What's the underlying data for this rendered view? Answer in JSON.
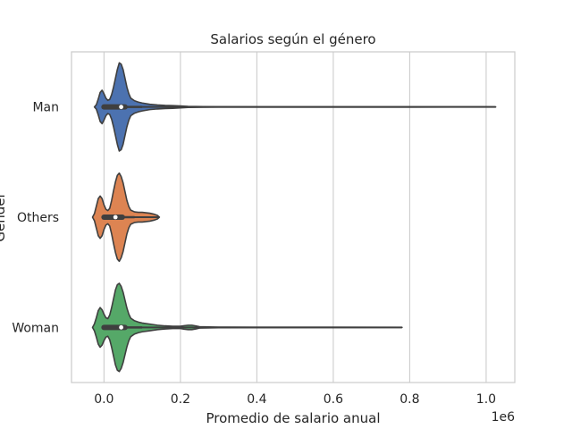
{
  "chart_data": {
    "type": "violin",
    "orientation": "horizontal",
    "title": "Salarios según el género",
    "xlabel": "Promedio de salario anual",
    "ylabel": "Gender",
    "x_offset_label": "1e6",
    "x_scale": 1000000,
    "xlim": [
      -0.085,
      1.075
    ],
    "x_ticks": [
      0.0,
      0.2,
      0.4,
      0.6,
      0.8,
      1.0
    ],
    "x_tick_labels": [
      "0.0",
      "0.2",
      "0.4",
      "0.6",
      "0.8",
      "1.0"
    ],
    "grid": "vertical",
    "categories": [
      "Man",
      "Others",
      "Woman"
    ],
    "series": [
      {
        "name": "Man",
        "color": "#4c72b0",
        "density": [
          [
            -0.025,
            0.0
          ],
          [
            -0.02,
            0.05
          ],
          [
            -0.015,
            0.18
          ],
          [
            -0.01,
            0.33
          ],
          [
            -0.005,
            0.38
          ],
          [
            0.0,
            0.3
          ],
          [
            0.005,
            0.2
          ],
          [
            0.01,
            0.15
          ],
          [
            0.015,
            0.17
          ],
          [
            0.02,
            0.28
          ],
          [
            0.025,
            0.45
          ],
          [
            0.03,
            0.65
          ],
          [
            0.035,
            0.85
          ],
          [
            0.04,
            1.0
          ],
          [
            0.045,
            0.97
          ],
          [
            0.05,
            0.85
          ],
          [
            0.055,
            0.65
          ],
          [
            0.06,
            0.45
          ],
          [
            0.065,
            0.3
          ],
          [
            0.07,
            0.2
          ],
          [
            0.08,
            0.14
          ],
          [
            0.09,
            0.11
          ],
          [
            0.1,
            0.09
          ],
          [
            0.12,
            0.06
          ],
          [
            0.14,
            0.045
          ],
          [
            0.16,
            0.035
          ],
          [
            0.18,
            0.03
          ],
          [
            0.2,
            0.022
          ],
          [
            0.22,
            0.012
          ],
          [
            0.26,
            0.007
          ],
          [
            0.3,
            0.004
          ],
          [
            0.4,
            0.0025
          ],
          [
            0.6,
            0.002
          ],
          [
            0.8,
            0.002
          ],
          [
            1.0,
            0.0015
          ],
          [
            1.025,
            0.0
          ]
        ],
        "box": {
          "q1": 0.0,
          "median": 0.045,
          "q3": 0.055,
          "whisker_low": 0.0,
          "whisker_high": 0.1
        },
        "max": 1.025
      },
      {
        "name": "Others",
        "color": "#dd8452",
        "density": [
          [
            -0.03,
            0.0
          ],
          [
            -0.025,
            0.08
          ],
          [
            -0.02,
            0.25
          ],
          [
            -0.015,
            0.42
          ],
          [
            -0.01,
            0.48
          ],
          [
            -0.005,
            0.42
          ],
          [
            0.0,
            0.28
          ],
          [
            0.005,
            0.18
          ],
          [
            0.01,
            0.15
          ],
          [
            0.015,
            0.2
          ],
          [
            0.02,
            0.38
          ],
          [
            0.025,
            0.6
          ],
          [
            0.03,
            0.8
          ],
          [
            0.035,
            0.95
          ],
          [
            0.04,
            1.0
          ],
          [
            0.045,
            0.92
          ],
          [
            0.05,
            0.78
          ],
          [
            0.055,
            0.58
          ],
          [
            0.06,
            0.38
          ],
          [
            0.065,
            0.24
          ],
          [
            0.07,
            0.16
          ],
          [
            0.08,
            0.12
          ],
          [
            0.09,
            0.11
          ],
          [
            0.1,
            0.11
          ],
          [
            0.11,
            0.1
          ],
          [
            0.12,
            0.09
          ],
          [
            0.13,
            0.07
          ],
          [
            0.14,
            0.04
          ],
          [
            0.145,
            0.0
          ]
        ],
        "box": {
          "q1": 0.0,
          "median": 0.03,
          "q3": 0.048,
          "whisker_low": 0.0,
          "whisker_high": 0.08
        },
        "max": 0.145
      },
      {
        "name": "Woman",
        "color": "#55a868",
        "density": [
          [
            -0.03,
            0.0
          ],
          [
            -0.025,
            0.08
          ],
          [
            -0.02,
            0.22
          ],
          [
            -0.015,
            0.38
          ],
          [
            -0.01,
            0.45
          ],
          [
            -0.005,
            0.4
          ],
          [
            0.0,
            0.3
          ],
          [
            0.005,
            0.22
          ],
          [
            0.01,
            0.2
          ],
          [
            0.015,
            0.28
          ],
          [
            0.02,
            0.45
          ],
          [
            0.025,
            0.65
          ],
          [
            0.03,
            0.85
          ],
          [
            0.035,
            0.97
          ],
          [
            0.04,
            1.0
          ],
          [
            0.045,
            0.93
          ],
          [
            0.05,
            0.8
          ],
          [
            0.055,
            0.62
          ],
          [
            0.06,
            0.44
          ],
          [
            0.065,
            0.3
          ],
          [
            0.07,
            0.21
          ],
          [
            0.08,
            0.15
          ],
          [
            0.09,
            0.12
          ],
          [
            0.1,
            0.1
          ],
          [
            0.12,
            0.075
          ],
          [
            0.14,
            0.05
          ],
          [
            0.16,
            0.035
          ],
          [
            0.18,
            0.025
          ],
          [
            0.2,
            0.025
          ],
          [
            0.21,
            0.04
          ],
          [
            0.22,
            0.05
          ],
          [
            0.23,
            0.05
          ],
          [
            0.24,
            0.035
          ],
          [
            0.25,
            0.015
          ],
          [
            0.3,
            0.007
          ],
          [
            0.4,
            0.004
          ],
          [
            0.6,
            0.003
          ],
          [
            0.78,
            0.0
          ]
        ],
        "box": {
          "q1": 0.0,
          "median": 0.045,
          "q3": 0.055,
          "whisker_low": 0.0,
          "whisker_high": 0.1
        },
        "max": 0.78
      }
    ]
  }
}
